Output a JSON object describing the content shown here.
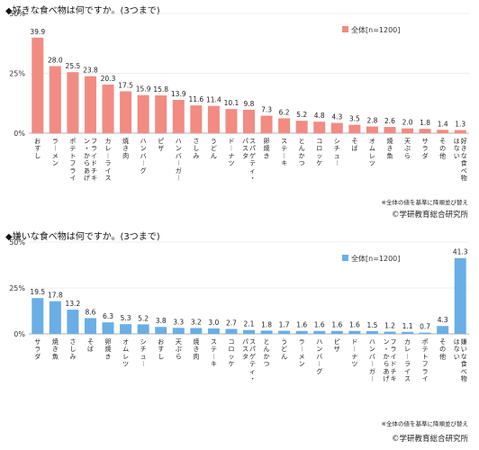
{
  "chart_data": [
    {
      "type": "bar",
      "title": "◆好きな食べ物は何ですか。(3つまで)",
      "yticks": [
        "50%",
        "25%",
        "0%"
      ],
      "ylim": [
        0,
        50
      ],
      "legend": "全体[n=1200]",
      "legend_position": "top-right",
      "color": "#f28b82",
      "categories": [
        "おすし",
        "ラーメン",
        "ポテトフライ",
        "フライドチキン・からあげ",
        "カレーライス",
        "焼き肉",
        "ハンバーグ",
        "ピザ",
        "ハンバーガー",
        "さしみ",
        "うどん",
        "ドーナツ",
        "スパゲティ・パスタ",
        "卵焼き",
        "ステーキ",
        "とんかつ",
        "コロッケ",
        "シチュー",
        "そば",
        "オムレツ",
        "焼き魚",
        "天ぷら",
        "サラダ",
        "その他",
        "好きな食べ物はない"
      ],
      "values": [
        39.9,
        28.0,
        25.5,
        23.8,
        20.3,
        17.5,
        15.9,
        15.8,
        13.9,
        11.6,
        11.4,
        10.1,
        9.8,
        7.3,
        6.2,
        5.2,
        4.8,
        4.3,
        3.5,
        2.8,
        2.6,
        2.0,
        1.8,
        1.4,
        1.3
      ],
      "labels": [
        "39.9",
        "28.0",
        "25.5",
        "23.8",
        "20.3",
        "17.5",
        "15.9",
        "15.8",
        "13.9",
        "11.6",
        "11.4",
        "10.1",
        "9.8",
        "7.3",
        "6.2",
        "5.2",
        "4.8",
        "4.3",
        "3.5",
        "2.8",
        "2.6",
        "2.0",
        "1.8",
        "1.4",
        "1.3"
      ],
      "note": "※全体の値を基準に降順並び替え",
      "credit": "©学研教育総合研究所"
    },
    {
      "type": "bar",
      "title": "◆嫌いな食べ物は何ですか。(3つまで)",
      "yticks": [
        "50%",
        "25%",
        "0%"
      ],
      "ylim": [
        0,
        50
      ],
      "legend": "全体[n=1200]",
      "legend_position": "top-right",
      "color": "#6aaee6",
      "categories": [
        "サラダ",
        "焼き魚",
        "さしみ",
        "そば",
        "卵焼き",
        "オムレツ",
        "シチュー",
        "おすし",
        "天ぷら",
        "焼き肉",
        "ステーキ",
        "コロッケ",
        "スパゲティ・パスタ",
        "とんかつ",
        "うどん",
        "ラーメン",
        "ハンバーグ",
        "ピザ",
        "ドーナツ",
        "ハンバーガー",
        "フライドチキン・からあげ",
        "カレーライス",
        "ポテトフライ",
        "その他",
        "嫌いな食べ物はない"
      ],
      "values": [
        19.5,
        17.8,
        13.2,
        8.6,
        6.3,
        5.3,
        5.2,
        3.8,
        3.3,
        3.2,
        3.0,
        2.7,
        2.1,
        1.8,
        1.7,
        1.6,
        1.6,
        1.6,
        1.6,
        1.5,
        1.2,
        1.1,
        0.7,
        4.3,
        41.3
      ],
      "labels": [
        "19.5",
        "17.8",
        "13.2",
        "8.6",
        "6.3",
        "5.3",
        "5.2",
        "3.8",
        "3.3",
        "3.2",
        "3.0",
        "2.7",
        "2.1",
        "1.8",
        "1.7",
        "1.6",
        "1.6",
        "1.6",
        "1.6",
        "1.5",
        "1.2",
        "1.1",
        "0.7",
        "4.3",
        "41.3"
      ],
      "note": "※全体の値を基準に降順並び替え",
      "credit": "©学研教育総合研究所"
    }
  ]
}
